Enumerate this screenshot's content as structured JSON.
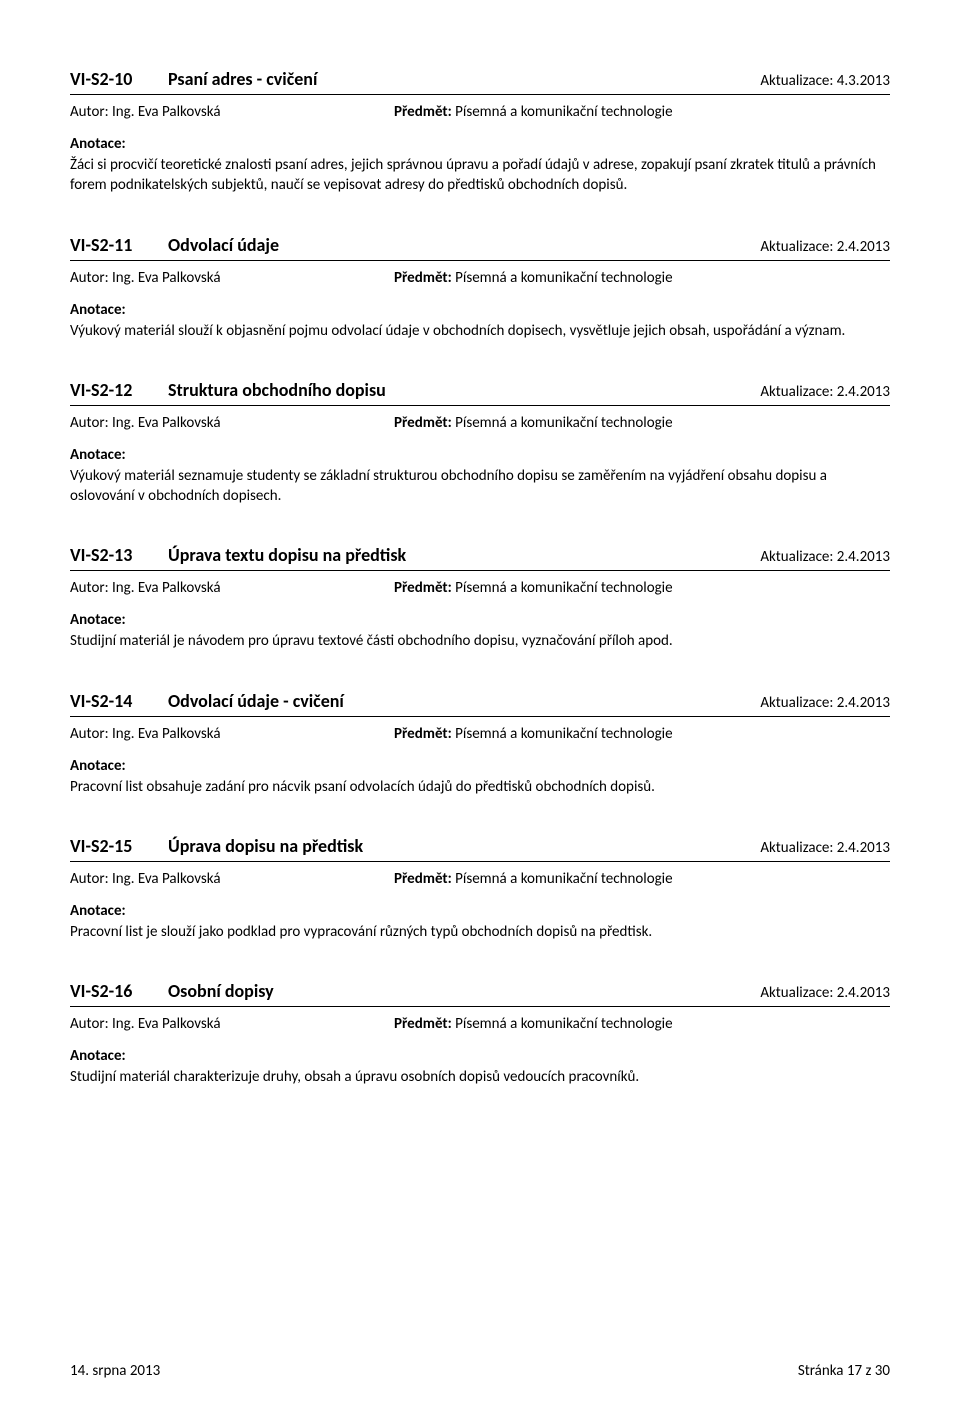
{
  "footer": {
    "date": "14. srpna 2013",
    "page": "Stránka 17 z 30"
  },
  "common": {
    "author_prefix": "Autor: ",
    "author": "Ing. Eva Palkovská",
    "subject_label": "Předmět:",
    "subject": "Písemná a komunikační technologie",
    "anot_label": "Anotace:",
    "updated_prefix": "Aktualizace: "
  },
  "entries": [
    {
      "code": "VI-S2-10",
      "title": "Psaní adres - cvičení",
      "updated": "4.3.2013",
      "text": "Žáci si procvičí teoretické znalosti psaní adres, jejich správnou úpravu a pořadí údajů v adrese, zopakují psaní zkratek titulů a právních forem podnikatelských subjektů, naučí se vepisovat adresy do předtisků obchodních dopisů."
    },
    {
      "code": "VI-S2-11",
      "title": "Odvolací údaje",
      "updated": "2.4.2013",
      "text": "Výukový materiál slouží k objasnění pojmu odvolací údaje v obchodních dopisech, vysvětluje jejich obsah, uspořádání a význam."
    },
    {
      "code": "VI-S2-12",
      "title": "Struktura obchodního dopisu",
      "updated": "2.4.2013",
      "text": "Výukový materiál seznamuje studenty se základní strukturou obchodního dopisu se zaměřením na vyjádření obsahu dopisu a oslovování v obchodních dopisech."
    },
    {
      "code": "VI-S2-13",
      "title": "Úprava textu dopisu na předtisk",
      "updated": "2.4.2013",
      "text": "Studijní materiál je návodem pro úpravu textové části obchodního dopisu, vyznačování příloh apod."
    },
    {
      "code": "VI-S2-14",
      "title": "Odvolací údaje - cvičení",
      "updated": "2.4.2013",
      "text": "Pracovní list obsahuje zadání pro nácvik psaní odvolacích údajů do předtisků obchodních dopisů."
    },
    {
      "code": "VI-S2-15",
      "title": "Úprava dopisu na předtisk",
      "updated": "2.4.2013",
      "text": "Pracovní list je slouží jako podklad pro vypracování různých typů obchodních dopisů na předtisk."
    },
    {
      "code": "VI-S2-16",
      "title": "Osobní dopisy",
      "updated": "2.4.2013",
      "text": "Studijní materiál charakterizuje druhy, obsah a úpravu osobních dopisů vedoucích pracovníků."
    }
  ]
}
